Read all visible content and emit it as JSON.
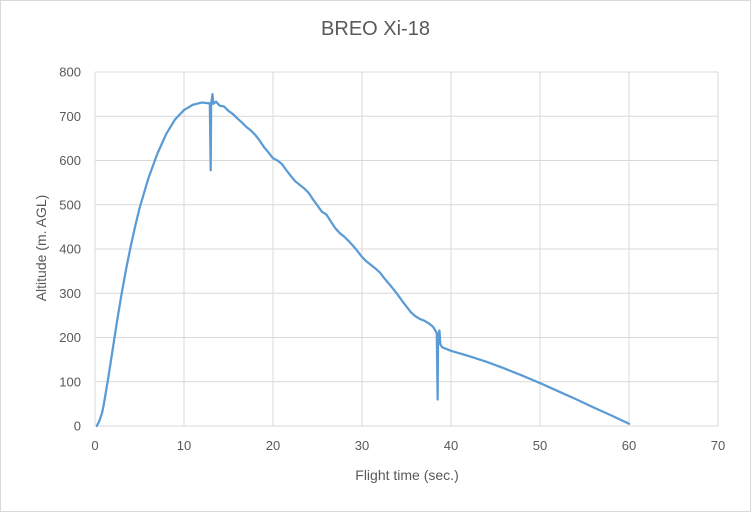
{
  "chart_data": {
    "type": "line",
    "title": "BREO Xi-18",
    "xlabel": "Flight time (sec.)",
    "ylabel": "Altitude (m. AGL)",
    "xlim": [
      0,
      70
    ],
    "ylim": [
      0,
      800
    ],
    "x_ticks": [
      0,
      10,
      20,
      30,
      40,
      50,
      60,
      70
    ],
    "y_ticks": [
      0,
      100,
      200,
      300,
      400,
      500,
      600,
      700,
      800
    ],
    "grid": true,
    "legend": "none",
    "color": "#5b9bd5",
    "series": [
      {
        "points": [
          [
            0.2,
            0
          ],
          [
            0.5,
            12
          ],
          [
            0.8,
            30
          ],
          [
            1.0,
            50
          ],
          [
            1.5,
            110
          ],
          [
            2.0,
            175
          ],
          [
            2.5,
            240
          ],
          [
            3.0,
            300
          ],
          [
            3.5,
            355
          ],
          [
            4.0,
            405
          ],
          [
            4.5,
            450
          ],
          [
            5.0,
            492
          ],
          [
            6.0,
            560
          ],
          [
            7.0,
            615
          ],
          [
            8.0,
            660
          ],
          [
            9.0,
            693
          ],
          [
            10.0,
            714
          ],
          [
            11.0,
            726
          ],
          [
            12.0,
            731
          ],
          [
            12.5,
            730
          ],
          [
            12.9,
            729
          ],
          [
            13.0,
            578
          ],
          [
            13.05,
            728
          ],
          [
            13.2,
            750
          ],
          [
            13.3,
            728
          ],
          [
            13.6,
            733
          ],
          [
            14.0,
            724
          ],
          [
            14.5,
            722
          ],
          [
            15.0,
            712
          ],
          [
            15.5,
            705
          ],
          [
            16.0,
            695
          ],
          [
            16.5,
            686
          ],
          [
            17.0,
            676
          ],
          [
            17.5,
            668
          ],
          [
            18.0,
            658
          ],
          [
            18.5,
            645
          ],
          [
            19.0,
            630
          ],
          [
            19.5,
            618
          ],
          [
            20.0,
            605
          ],
          [
            20.5,
            600
          ],
          [
            21.0,
            592
          ],
          [
            21.5,
            578
          ],
          [
            22.0,
            565
          ],
          [
            22.5,
            553
          ],
          [
            23.0,
            545
          ],
          [
            23.5,
            537
          ],
          [
            24.0,
            527
          ],
          [
            24.5,
            512
          ],
          [
            25.0,
            498
          ],
          [
            25.5,
            484
          ],
          [
            26.0,
            478
          ],
          [
            26.5,
            462
          ],
          [
            27.0,
            447
          ],
          [
            27.5,
            436
          ],
          [
            28.0,
            428
          ],
          [
            28.5,
            418
          ],
          [
            29.0,
            407
          ],
          [
            29.5,
            395
          ],
          [
            30.0,
            382
          ],
          [
            30.5,
            372
          ],
          [
            31.0,
            364
          ],
          [
            31.5,
            356
          ],
          [
            32.0,
            347
          ],
          [
            32.5,
            334
          ],
          [
            33.0,
            322
          ],
          [
            33.5,
            310
          ],
          [
            34.0,
            297
          ],
          [
            34.5,
            283
          ],
          [
            35.0,
            270
          ],
          [
            35.5,
            257
          ],
          [
            36.0,
            248
          ],
          [
            36.5,
            242
          ],
          [
            37.0,
            238
          ],
          [
            37.5,
            232
          ],
          [
            38.0,
            224
          ],
          [
            38.4,
            210
          ],
          [
            38.5,
            60
          ],
          [
            38.55,
            200
          ],
          [
            38.7,
            216
          ],
          [
            38.8,
            185
          ],
          [
            39.0,
            178
          ],
          [
            40.0,
            170
          ],
          [
            42.0,
            158
          ],
          [
            44.0,
            145
          ],
          [
            46.0,
            130
          ],
          [
            48.0,
            114
          ],
          [
            50.0,
            97
          ],
          [
            52.0,
            79
          ],
          [
            54.0,
            61
          ],
          [
            56.0,
            42
          ],
          [
            58.0,
            24
          ],
          [
            60.0,
            5
          ]
        ]
      }
    ]
  }
}
